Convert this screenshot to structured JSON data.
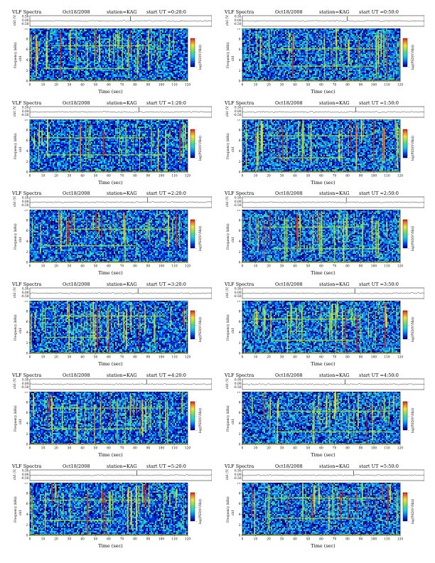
{
  "figure": {
    "title": "VLF Spectra",
    "station": "station=KAG",
    "wave_ylabel": "ch1 (V)",
    "spec_ylabel": "Frequency (kHz)",
    "spec_ylabel_ch": "ch1",
    "xlabel": "Time (sec)",
    "colorbar_label": "log(PSD(V²/Hz))",
    "wave_ticks": [
      "0.50",
      "0.00",
      "-0.50"
    ],
    "freq_ticks": [
      "10",
      "8",
      "6",
      "4",
      "2",
      "0"
    ],
    "time_ticks": [
      "0",
      "10",
      "20",
      "30",
      "40",
      "50",
      "60",
      "70",
      "80",
      "90",
      "100",
      "110",
      "120"
    ],
    "colorbar_ticks": [
      "-",
      "-",
      "-"
    ]
  },
  "chart_data": [
    {
      "type": "heatmap",
      "title": "VLF Spectra",
      "date": "Oct18/2008",
      "station": "station=KAG",
      "start": "start UT =0:20:0",
      "xlabel": "Time (sec)",
      "ylabel": "Frequency (kHz)",
      "xlim": [
        0,
        120
      ],
      "ylim": [
        0,
        10
      ]
    },
    {
      "type": "heatmap",
      "title": "VLF Spectra",
      "date": "Oct18/2008",
      "station": "station=KAG",
      "start": "start UT =0:50:0",
      "xlabel": "Time (sec)",
      "ylabel": "Frequency (kHz)",
      "xlim": [
        0,
        120
      ],
      "ylim": [
        0,
        10
      ]
    },
    {
      "type": "heatmap",
      "title": "VLF Spectra",
      "date": "Oct18/2008",
      "station": "station=KAG",
      "start": "start UT =1:20:0",
      "xlabel": "Time (sec)",
      "ylabel": "Frequency (kHz)",
      "xlim": [
        0,
        120
      ],
      "ylim": [
        0,
        10
      ]
    },
    {
      "type": "heatmap",
      "title": "VLF Spectra",
      "date": "Oct18/2008",
      "station": "station=KAG",
      "start": "start UT =1:50:0",
      "xlabel": "Time (sec)",
      "ylabel": "Frequency (kHz)",
      "xlim": [
        0,
        120
      ],
      "ylim": [
        0,
        10
      ]
    },
    {
      "type": "heatmap",
      "title": "VLF Spectra",
      "date": "Oct18/2008",
      "station": "station=KAG",
      "start": "start UT =2:20:0",
      "xlabel": "Time (sec)",
      "ylabel": "Frequency (kHz)",
      "xlim": [
        0,
        120
      ],
      "ylim": [
        0,
        10
      ]
    },
    {
      "type": "heatmap",
      "title": "VLF Spectra",
      "date": "Oct18/2008",
      "station": "station=KAG",
      "start": "start UT =2:50:0",
      "xlabel": "Time (sec)",
      "ylabel": "Frequency (kHz)",
      "xlim": [
        0,
        120
      ],
      "ylim": [
        0,
        10
      ]
    },
    {
      "type": "heatmap",
      "title": "VLF Spectra",
      "date": "Oct18/2008",
      "station": "station=KAG",
      "start": "start UT =3:20:0",
      "xlabel": "Time (sec)",
      "ylabel": "Frequency (kHz)",
      "xlim": [
        0,
        120
      ],
      "ylim": [
        0,
        10
      ]
    },
    {
      "type": "heatmap",
      "title": "VLF Spectra",
      "date": "Oct18/2008",
      "station": "station=KAG",
      "start": "start UT =3:50:0",
      "xlabel": "Time (sec)",
      "ylabel": "Frequency (kHz)",
      "xlim": [
        0,
        120
      ],
      "ylim": [
        0,
        10
      ]
    },
    {
      "type": "heatmap",
      "title": "VLF Spectra",
      "date": "Oct18/2008",
      "station": "station=KAG",
      "start": "start UT =4:20:0",
      "xlabel": "Time (sec)",
      "ylabel": "Frequency (kHz)",
      "xlim": [
        0,
        120
      ],
      "ylim": [
        0,
        10
      ]
    },
    {
      "type": "heatmap",
      "title": "VLF Spectra",
      "date": "Oct18/2008",
      "station": "station=KAG",
      "start": "start UT =4:50:0",
      "xlabel": "Time (sec)",
      "ylabel": "Frequency (kHz)",
      "xlim": [
        0,
        120
      ],
      "ylim": [
        0,
        10
      ]
    },
    {
      "type": "heatmap",
      "title": "VLF Spectra",
      "date": "Oct18/2008",
      "station": "station=KAG",
      "start": "start UT =5:20:0",
      "xlabel": "Time (sec)",
      "ylabel": "Frequency (kHz)",
      "xlim": [
        0,
        120
      ],
      "ylim": [
        0,
        10
      ]
    },
    {
      "type": "heatmap",
      "title": "VLF Spectra",
      "date": "Oct18/2008",
      "station": "station=KAG",
      "start": "start UT =5:50:0",
      "xlabel": "Time (sec)",
      "ylabel": "Frequency (kHz)",
      "xlim": [
        0,
        120
      ],
      "ylim": [
        0,
        10
      ]
    }
  ],
  "colors": {
    "colormap": [
      "#00007a",
      "#0033dd",
      "#0a8fe8",
      "#27c8e0",
      "#47d98f",
      "#9fe34a",
      "#f2e23c",
      "#f08a2a",
      "#d8241c"
    ],
    "waveform": "#000000",
    "axis": "#000000",
    "baseline": "#b8b800"
  }
}
